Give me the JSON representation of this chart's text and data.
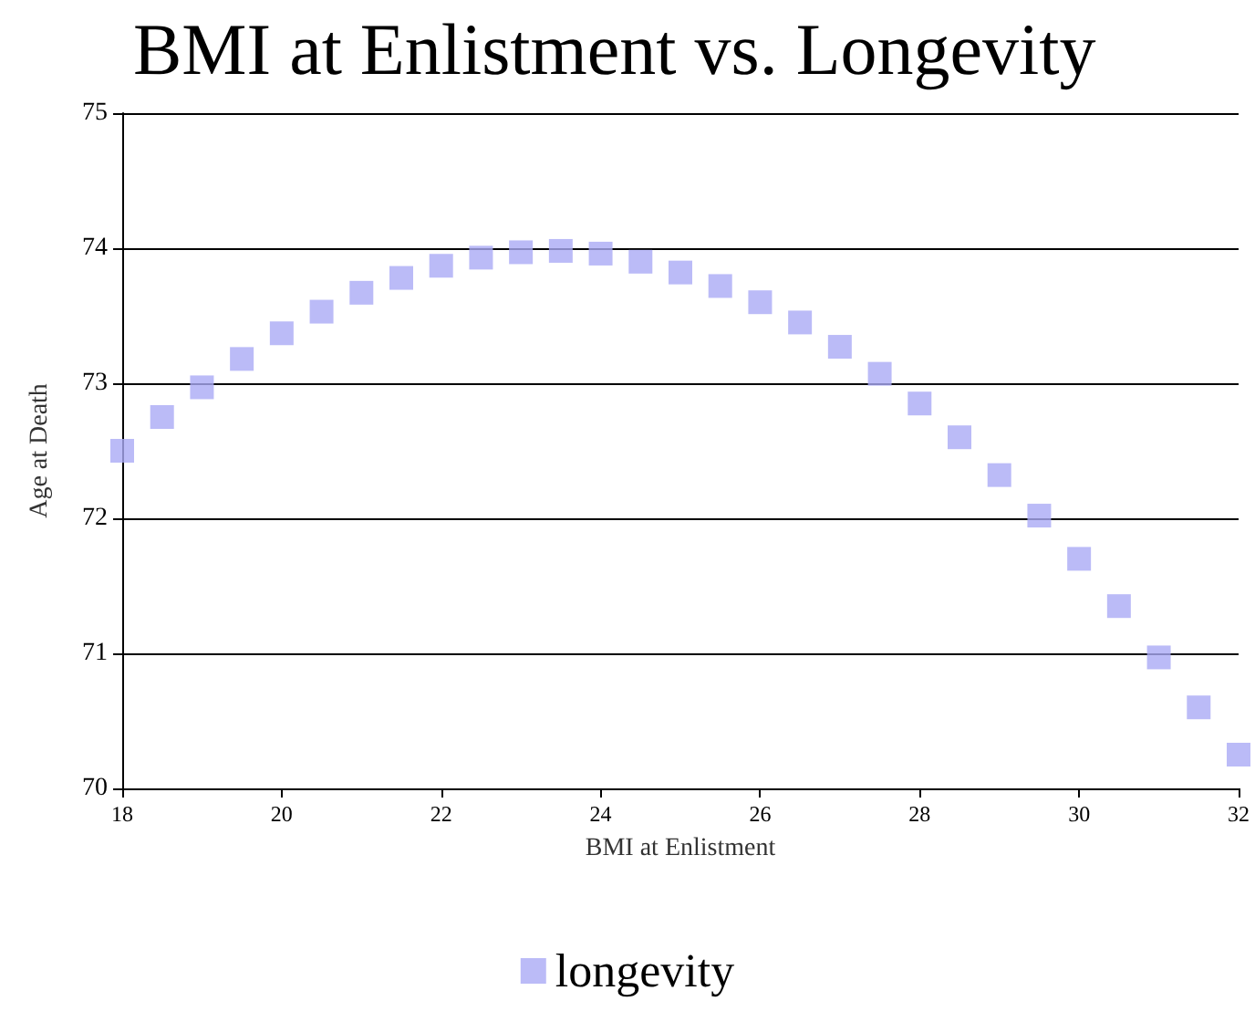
{
  "chart_data": {
    "type": "scatter",
    "title": "BMI at Enlistment vs. Longevity",
    "xlabel": "BMI at Enlistment",
    "ylabel": "Age at Death",
    "x": [
      18,
      18.5,
      19,
      19.5,
      20,
      20.5,
      21,
      21.5,
      22,
      22.5,
      23,
      23.5,
      24,
      24.5,
      25,
      25.5,
      26,
      26.5,
      27,
      27.5,
      28,
      28.5,
      29,
      29.5,
      30,
      30.5,
      31,
      31.5,
      32
    ],
    "series": [
      {
        "name": "longevity",
        "color": "#aaaaf5",
        "values": [
          72.5,
          72.75,
          72.97,
          73.18,
          73.37,
          73.53,
          73.67,
          73.78,
          73.87,
          73.93,
          73.97,
          73.98,
          73.96,
          73.9,
          73.82,
          73.72,
          73.6,
          73.45,
          73.27,
          73.07,
          72.85,
          72.6,
          72.32,
          72.02,
          71.7,
          71.35,
          70.97,
          70.6,
          70.25
        ]
      }
    ],
    "xlim": [
      18,
      32
    ],
    "xticks": [
      18,
      20,
      22,
      24,
      26,
      28,
      30,
      32
    ],
    "ylim": [
      70,
      75
    ],
    "yticks": [
      70,
      71,
      72,
      73,
      74,
      75
    ],
    "grid": "y",
    "legend": "bottom",
    "marker": "square"
  }
}
